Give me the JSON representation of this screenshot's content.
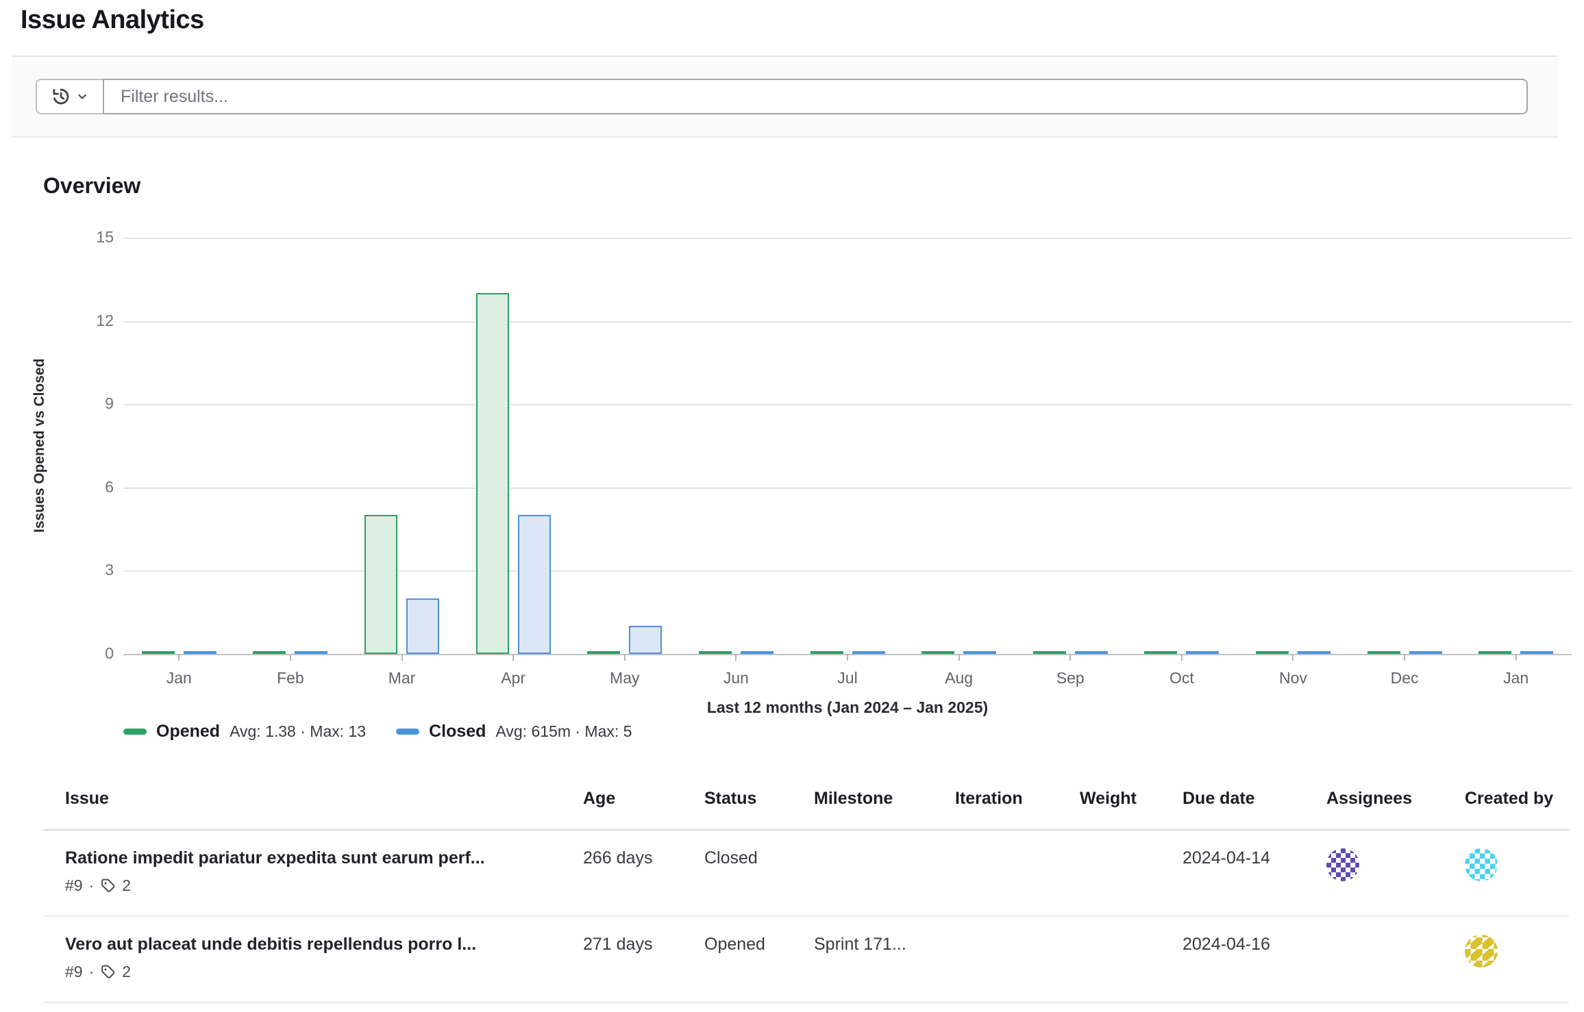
{
  "page": {
    "title": "Issue Analytics"
  },
  "filter": {
    "placeholder": "Filter results..."
  },
  "overview": {
    "heading": "Overview"
  },
  "chart_data": {
    "type": "bar",
    "title": "",
    "ylabel": "Issues Opened vs Closed",
    "xlabel": "Last 12 months (Jan 2024 – Jan 2025)",
    "categories": [
      "Jan",
      "Feb",
      "Mar",
      "Apr",
      "May",
      "Jun",
      "Jul",
      "Aug",
      "Sep",
      "Oct",
      "Nov",
      "Dec",
      "Jan"
    ],
    "series": [
      {
        "name": "Opened",
        "stats": "Avg: 1.38 · Max: 13",
        "stroke": "#2f9e5f",
        "fill": "#ddeee3",
        "values": [
          0,
          0,
          5,
          13,
          0,
          0,
          0,
          0,
          0,
          0,
          0,
          0,
          0
        ]
      },
      {
        "name": "Closed",
        "stats": "Avg: 615m · Max: 5",
        "stroke": "#528fd3",
        "fill": "#dbe7f6",
        "values": [
          0,
          0,
          2,
          5,
          1,
          0,
          0,
          0,
          0,
          0,
          0,
          0,
          0
        ]
      }
    ],
    "yticks": [
      0,
      3,
      6,
      9,
      12,
      15
    ],
    "ylim": [
      0,
      15
    ],
    "grid": true,
    "legend_position": "bottom"
  },
  "table": {
    "columns": [
      "Issue",
      "Age",
      "Status",
      "Milestone",
      "Iteration",
      "Weight",
      "Due date",
      "Assignees",
      "Created by"
    ],
    "meta_separator": "·",
    "rows": [
      {
        "title": "Ratione impedit pariatur expedita sunt earum perf...",
        "ref": "#9",
        "labels_count": "2",
        "age": "266 days",
        "status": "Closed",
        "milestone": "",
        "iteration": "",
        "weight": "",
        "due_date": "2024-04-14",
        "assignee_avatar": "purple-identicon",
        "created_avatar": "cyan-identicon"
      },
      {
        "title": "Vero aut placeat unde debitis repellendus porro l...",
        "ref": "#9",
        "labels_count": "2",
        "age": "271 days",
        "status": "Opened",
        "milestone": "Sprint 171...",
        "iteration": "",
        "weight": "",
        "due_date": "2024-04-16",
        "assignee_avatar": "",
        "created_avatar": "yellow-identicon"
      }
    ]
  }
}
